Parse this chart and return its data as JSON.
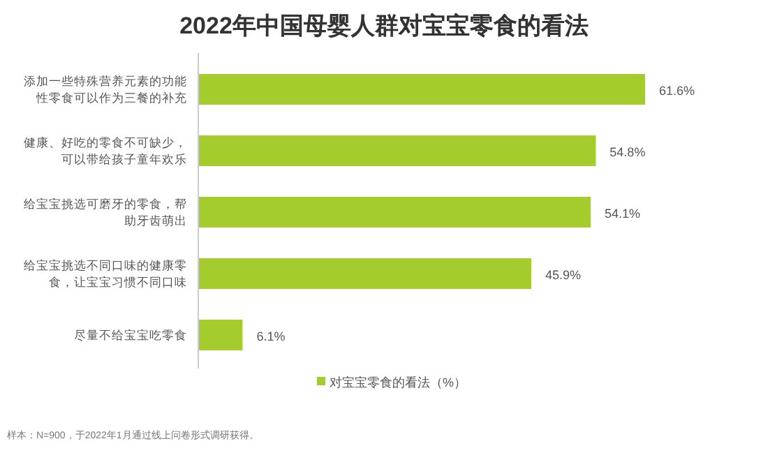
{
  "chart_data": {
    "type": "bar",
    "orientation": "horizontal",
    "title": "2022年中国母婴人群对宝宝零食的看法",
    "categories": [
      "添加一些特殊营养元素的功能性零食可以作为三餐的补充",
      "健康、好吃的零食不可缺少，可以带给孩子童年欢乐",
      "给宝宝挑选可磨牙的零食，帮助牙齿萌出",
      "给宝宝挑选不同口味的健康零食，让宝宝习惯不同口味",
      "尽量不给宝宝吃零食"
    ],
    "series": [
      {
        "name": "对宝宝零食的看法（%）",
        "color": "#a5cc2d",
        "values": [
          61.6,
          54.8,
          54.1,
          45.9,
          6.1
        ],
        "value_labels": [
          "61.6%",
          "54.8%",
          "54.1%",
          "45.9%",
          "6.1%"
        ]
      }
    ],
    "legend": "bottom",
    "annotations": [
      "样本：N=900，于2022年1月通过线上问卷形式调研获得。"
    ]
  }
}
